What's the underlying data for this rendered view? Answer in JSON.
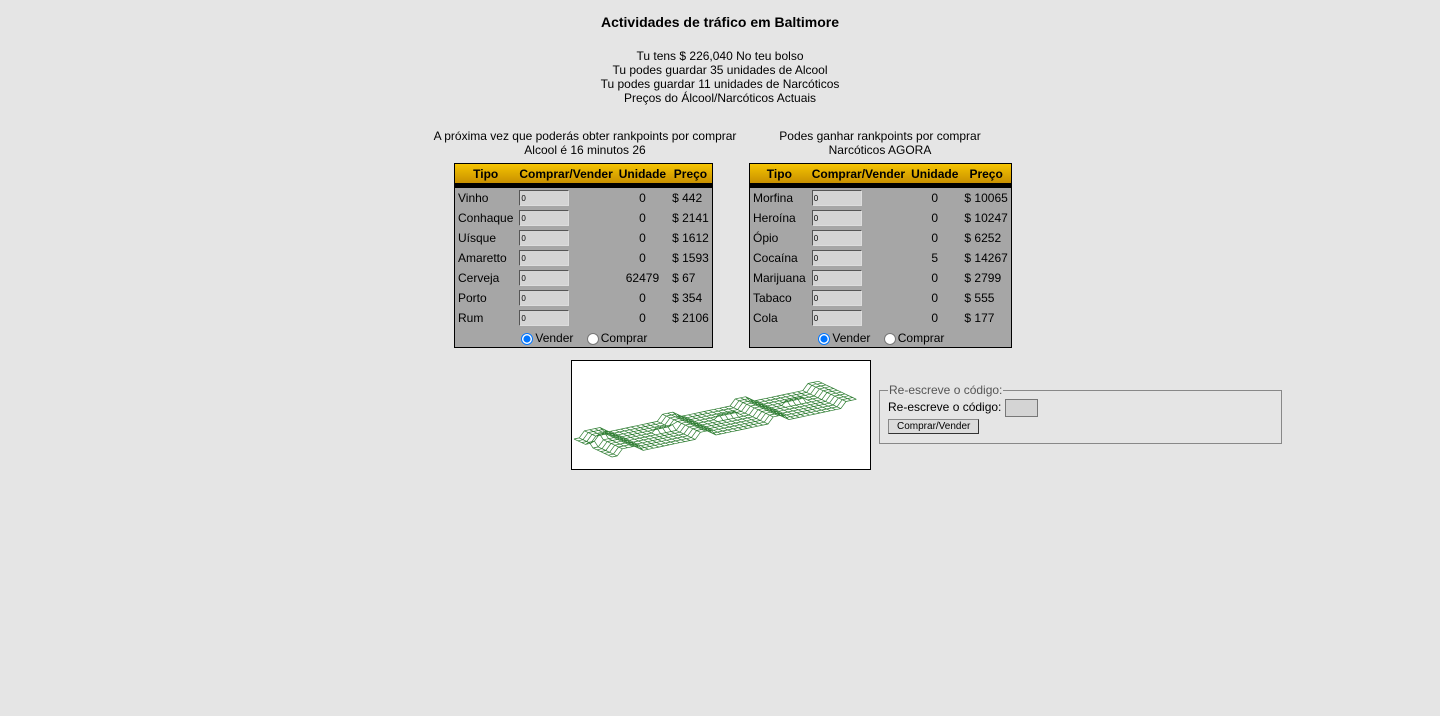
{
  "title": "Actividades de tráfico em Baltimore",
  "info": [
    "Tu tens $ 226,040 No teu bolso",
    "Tu podes guardar 35 unidades de Alcool",
    "Tu podes guardar 11 unidades de Narcóticos",
    "Preços do Álcool/Narcóticos Actuais"
  ],
  "alcohol": {
    "note": [
      "A próxima vez que poderás obter rankpoints por comprar",
      "Alcool é 16 minutos 26"
    ],
    "headers": [
      "Tipo",
      "Comprar/Vender",
      "Unidade",
      "Preço"
    ],
    "rows": [
      {
        "tipo": "Vinho",
        "qty": "0",
        "unidade": "0",
        "preco": "$ 442"
      },
      {
        "tipo": "Conhaque",
        "qty": "0",
        "unidade": "0",
        "preco": "$ 2141"
      },
      {
        "tipo": "Uísque",
        "qty": "0",
        "unidade": "0",
        "preco": "$ 1612"
      },
      {
        "tipo": "Amaretto",
        "qty": "0",
        "unidade": "0",
        "preco": "$ 1593"
      },
      {
        "tipo": "Cerveja",
        "qty": "0",
        "unidade": "62479",
        "preco": "$ 67"
      },
      {
        "tipo": "Porto",
        "qty": "0",
        "unidade": "0",
        "preco": "$ 354"
      },
      {
        "tipo": "Rum",
        "qty": "0",
        "unidade": "0",
        "preco": "$ 2106"
      }
    ],
    "sell": "Vender",
    "buy": "Comprar",
    "selected": "Vender"
  },
  "narcotics": {
    "note": [
      "Podes ganhar rankpoints por comprar",
      "Narcóticos AGORA"
    ],
    "headers": [
      "Tipo",
      "Comprar/Vender",
      "Unidade",
      "Preço"
    ],
    "rows": [
      {
        "tipo": "Morfina",
        "qty": "0",
        "unidade": "0",
        "preco": "$ 10065"
      },
      {
        "tipo": "Heroína",
        "qty": "0",
        "unidade": "0",
        "preco": "$ 10247"
      },
      {
        "tipo": "Ópio",
        "qty": "0",
        "unidade": "0",
        "preco": "$ 6252"
      },
      {
        "tipo": "Cocaína",
        "qty": "0",
        "unidade": "5",
        "preco": "$ 14267"
      },
      {
        "tipo": "Marijuana",
        "qty": "0",
        "unidade": "0",
        "preco": "$ 2799"
      },
      {
        "tipo": "Tabaco",
        "qty": "0",
        "unidade": "0",
        "preco": "$ 555"
      },
      {
        "tipo": "Cola",
        "qty": "0",
        "unidade": "0",
        "preco": "$ 177"
      }
    ],
    "sell": "Vender",
    "buy": "Comprar",
    "selected": "Vender"
  },
  "captcha": {
    "legend": "Re-escreve o código:",
    "label": "Re-escreve o código:",
    "value": "",
    "submit": "Comprar/Vender"
  },
  "colors": {
    "header": "#e0a800",
    "table_bg": "#a6a6a6",
    "captcha_mesh": "#2e7d32"
  }
}
